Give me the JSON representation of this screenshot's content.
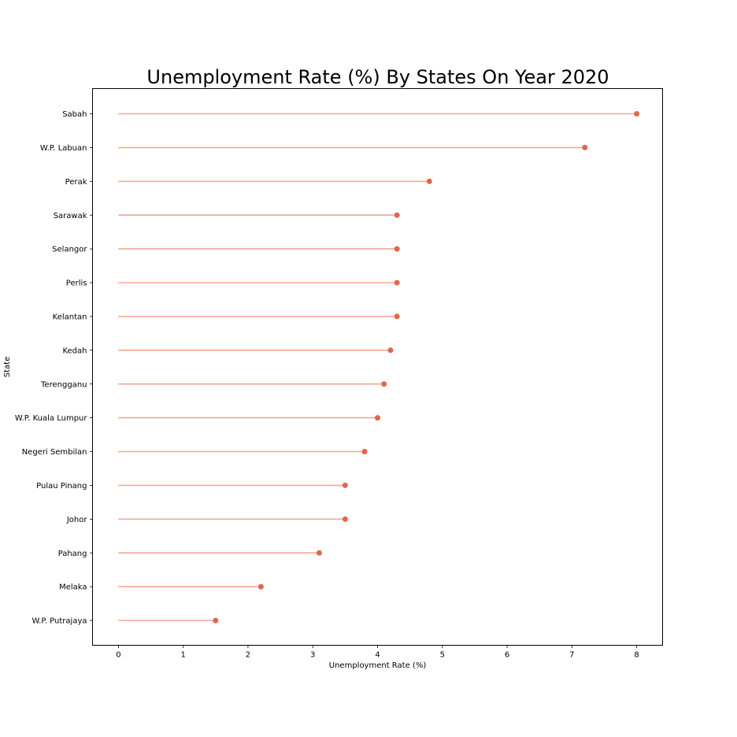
{
  "chart_data": {
    "type": "lollipop",
    "title": "Unemployment Rate (%) By States On Year 2020",
    "xlabel": "Unemployment Rate (%)",
    "ylabel": "State",
    "xlim": [
      -0.4,
      8.4
    ],
    "xticks": [
      0,
      1,
      2,
      3,
      4,
      5,
      6,
      7,
      8
    ],
    "grid": false,
    "colors": {
      "stem": "#f4a796",
      "marker": "#e0674b",
      "axis": "#000000"
    },
    "categories": [
      "Sabah",
      "W.P. Labuan",
      "Perak",
      "Sarawak",
      "Selangor",
      "Perlis",
      "Kelantan",
      "Kedah",
      "Terengganu",
      "W.P. Kuala Lumpur",
      "Negeri Sembilan",
      "Pulau Pinang",
      "Johor",
      "Pahang",
      "Melaka",
      "W.P. Putrajaya"
    ],
    "values": [
      8.0,
      7.2,
      4.8,
      4.3,
      4.3,
      4.3,
      4.3,
      4.2,
      4.1,
      4.0,
      3.8,
      3.5,
      3.5,
      3.1,
      2.2,
      1.5
    ]
  }
}
